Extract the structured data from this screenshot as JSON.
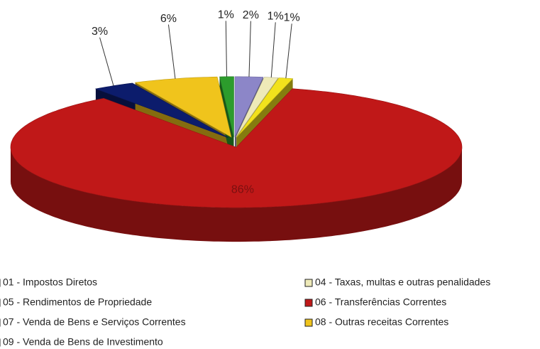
{
  "chart_data": {
    "type": "pie3d",
    "categories": [
      "01 - Impostos Diretos",
      "04 - Taxas, multas e outras penalidades",
      "05 - Rendimentos de Propriedade",
      "06 - Transferências Correntes",
      "07 - Venda de Bens e Serviços Correntes",
      "08 - Outras receitas Correntes",
      "09 - Venda de Bens de Investimento"
    ],
    "values": [
      2,
      1,
      1,
      86,
      3,
      6,
      1
    ],
    "value_labels": [
      "2%",
      "1%",
      "1%",
      "86%",
      "3%",
      "6%",
      "1%"
    ],
    "colors": [
      "#8c86c8",
      "#eeeab8",
      "#f2e21c",
      "#c01818",
      "#0c1c6c",
      "#f0c41c",
      "#2c9c2c"
    ],
    "legend": "bottom"
  }
}
